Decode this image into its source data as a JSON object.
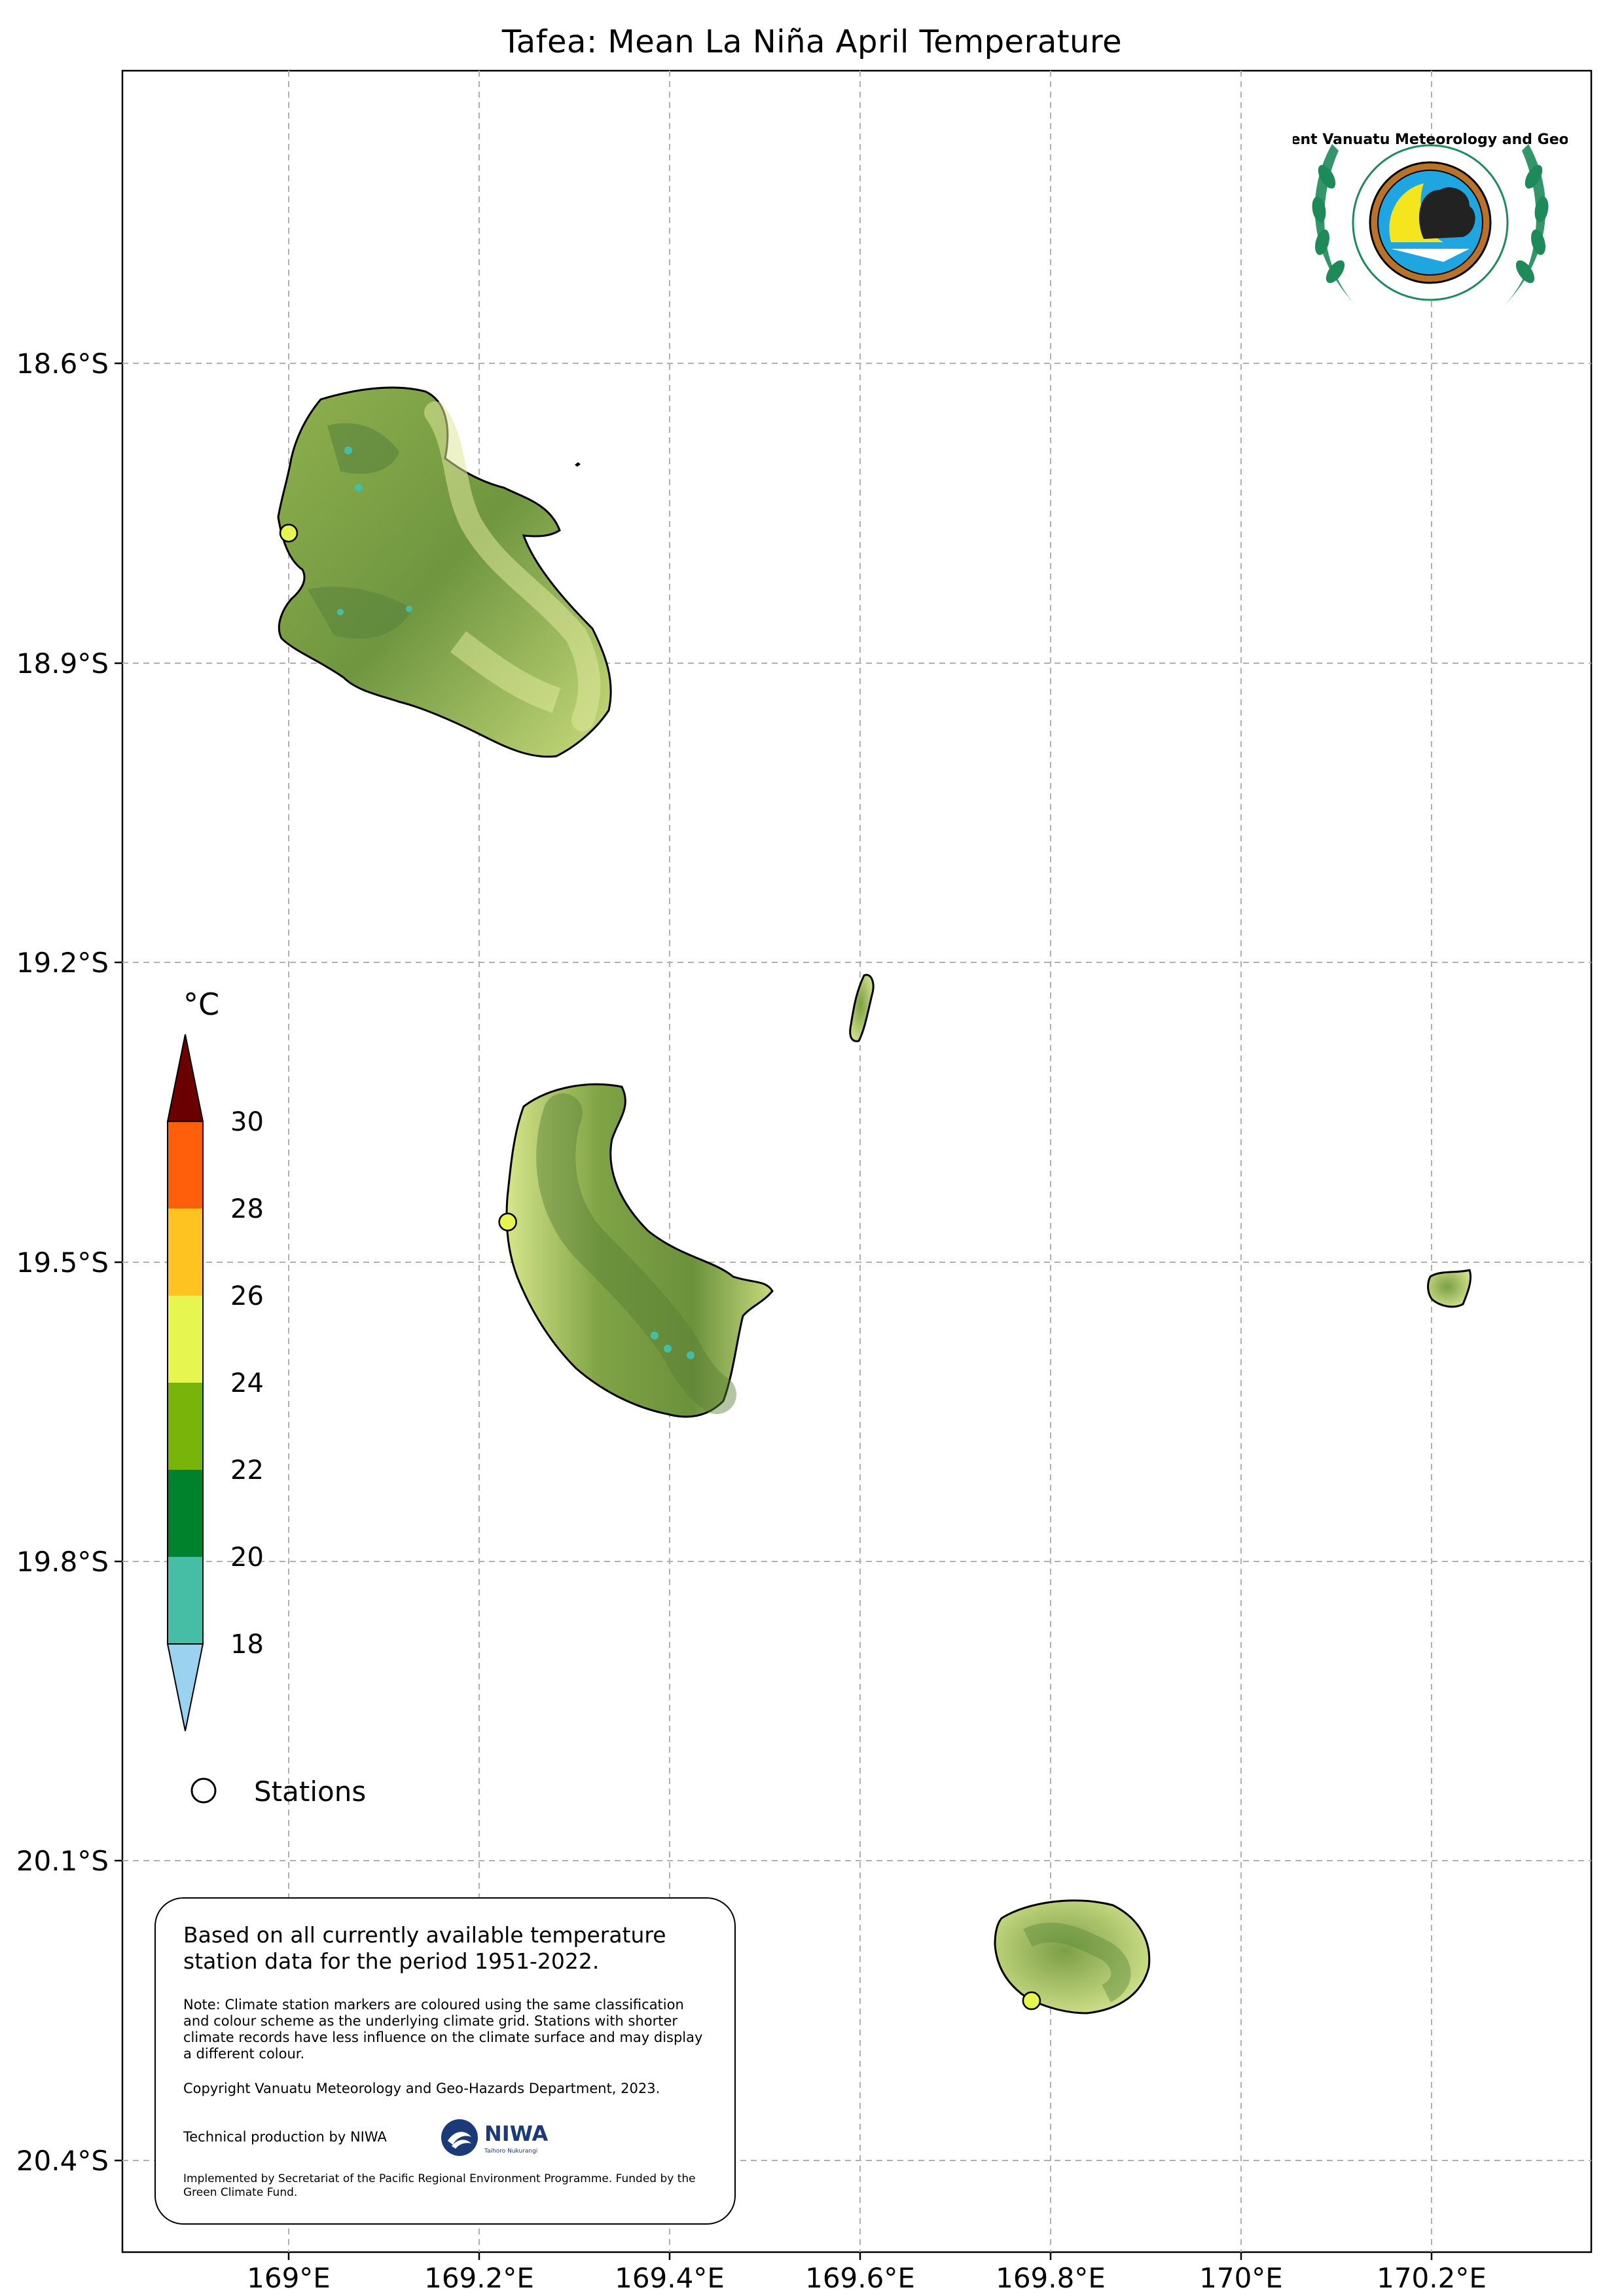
{
  "title": "Tafea: Mean La Niña April Temperature",
  "axes": {
    "x_ticks": [
      "169°E",
      "169.2°E",
      "169.4°E",
      "169.6°E",
      "169.8°E",
      "170°E",
      "170.2°E"
    ],
    "y_ticks": [
      "18.6°S",
      "18.9°S",
      "19.2°S",
      "19.5°S",
      "19.8°S",
      "20.1°S",
      "20.4°S"
    ]
  },
  "colorbar": {
    "unit": "°C",
    "labels": [
      "30",
      "28",
      "26",
      "24",
      "22",
      "20",
      "18"
    ],
    "colors": {
      "above_30": "#6b0000",
      "28_30": "#ff5f0a",
      "26_28": "#ffc321",
      "24_26": "#e6f550",
      "22_24": "#78b40a",
      "20_22": "#00822d",
      "18_20": "#46bea5",
      "below_18": "#9bd2f0"
    }
  },
  "legend": {
    "stations_label": "Stations"
  },
  "logo": {
    "name": "Department Vanuatu Meteorology and Geo-Hazards"
  },
  "info_box": {
    "main": "Based on all currently available temperature station data for the period 1951-2022.",
    "note": "Note: Climate station markers are coloured using the same classification and colour scheme as the underlying climate grid. Stations with shorter climate records have less influence on the climate surface and may display a different colour.",
    "copyright": "Copyright Vanuatu Meteorology and Geo-Hazards Department, 2023.",
    "technical": "Technical production by NIWA",
    "niwa_logo_text": "NIWA",
    "niwa_logo_subtext": "Taihoro Nukurangi",
    "implemented": "Implemented by Secretariat of the Pacific Regional Environment Programme. Funded by the Green Climate Fund."
  },
  "stations": [
    {
      "name": "station-erromango",
      "lon": 169.0,
      "lat": -18.77,
      "color": "#e6f550"
    },
    {
      "name": "station-tanna",
      "lon": 169.23,
      "lat": -19.46,
      "color": "#e6f550"
    },
    {
      "name": "station-aneityum",
      "lon": 169.78,
      "lat": -20.24,
      "color": "#e6f550"
    }
  ]
}
